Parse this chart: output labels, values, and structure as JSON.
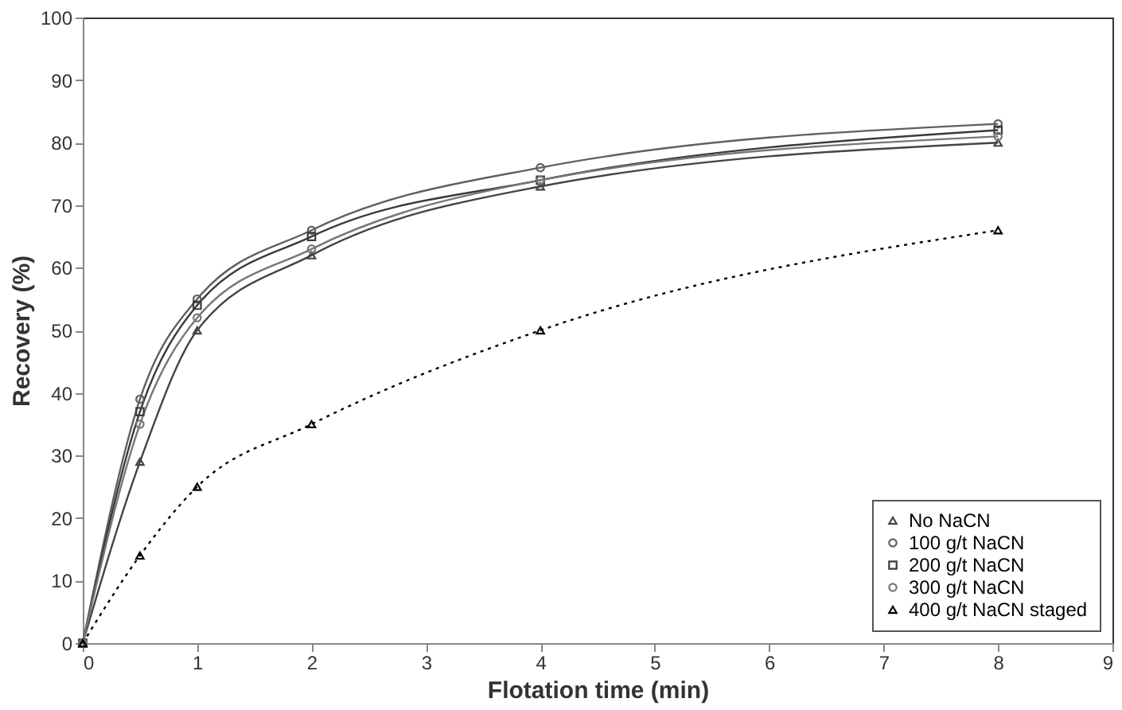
{
  "chart_data": {
    "type": "line",
    "xlabel": "Flotation time (min)",
    "ylabel": "Recovery (%)",
    "xlim": [
      0,
      9
    ],
    "xticks": [
      0,
      1,
      2,
      3,
      4,
      5,
      6,
      7,
      8,
      9
    ],
    "ylim": [
      0,
      100
    ],
    "yticks": [
      0,
      10,
      20,
      30,
      40,
      50,
      60,
      70,
      80,
      90,
      100
    ],
    "grid": false,
    "legend": "bottom right",
    "x": [
      0,
      0.5,
      1,
      2,
      4,
      8
    ],
    "series": [
      {
        "name": "No NaCN",
        "color": "#444444",
        "marker": "triangle",
        "line_style": "solid",
        "values": [
          0,
          29,
          50,
          62,
          73,
          80
        ]
      },
      {
        "name": "100 g/t NaCN",
        "color": "#606060",
        "marker": "circle",
        "line_style": "solid",
        "values": [
          0,
          39,
          55,
          66,
          76,
          83
        ]
      },
      {
        "name": "200 g/t NaCN",
        "color": "#3a3a3a",
        "marker": "square",
        "line_style": "solid",
        "values": [
          0,
          37,
          54,
          65,
          74,
          82
        ]
      },
      {
        "name": "300 g/t NaCN",
        "color": "#777777",
        "marker": "circle",
        "line_style": "solid",
        "values": [
          0,
          35,
          52,
          63,
          74,
          81
        ]
      },
      {
        "name": "400 g/t NaCN staged",
        "color": "#000000",
        "marker": "triangle",
        "line_style": "dotted",
        "values": [
          0,
          14,
          25,
          35,
          50,
          66
        ]
      }
    ]
  }
}
